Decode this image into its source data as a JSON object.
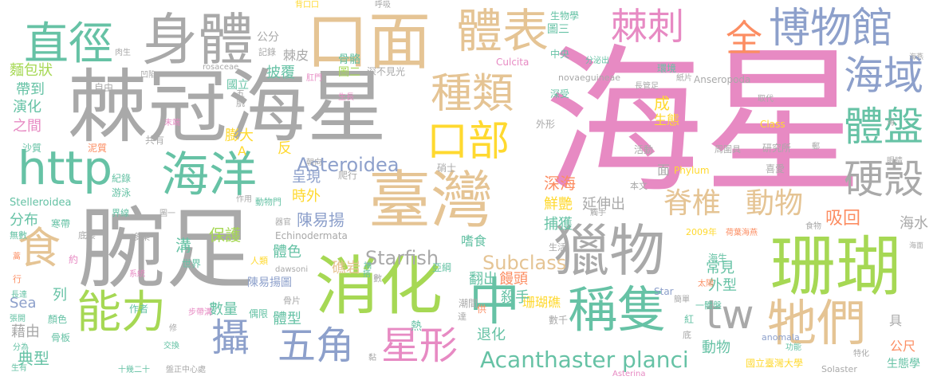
{
  "palette": {
    "pink": "#e78ac3",
    "gray": "#a9a9a9",
    "green": "#8fd36b",
    "teal": "#66c2a5",
    "orange": "#fc8d62",
    "yellow": "#ffd92f",
    "tan": "#e5c494",
    "blue": "#8da0cb",
    "lime": "#a6d854"
  },
  "words": [
    {
      "text": "海星",
      "color": "pink"
    },
    {
      "text": "棘冠海星",
      "color": "gray"
    },
    {
      "text": "腕足",
      "color": "gray"
    },
    {
      "text": "珊瑚",
      "color": "lime"
    },
    {
      "text": "臺灣",
      "color": "tan"
    },
    {
      "text": "消化",
      "color": "lime"
    },
    {
      "text": "獵物",
      "color": "gray"
    },
    {
      "text": "口面",
      "color": "tan"
    },
    {
      "text": "身體",
      "color": "gray"
    },
    {
      "text": "直徑",
      "color": "teal"
    },
    {
      "text": "海洋",
      "color": "teal"
    },
    {
      "text": "http",
      "color": "teal"
    },
    {
      "text": "能力",
      "color": "lime"
    },
    {
      "text": "中",
      "color": "teal"
    },
    {
      "text": "稱隻",
      "color": "teal"
    },
    {
      "text": "牠們",
      "color": "tan"
    },
    {
      "text": "博物館",
      "color": "blue"
    },
    {
      "text": "棘刺",
      "color": "pink"
    },
    {
      "text": "體表",
      "color": "tan"
    },
    {
      "text": "全",
      "color": "orange"
    },
    {
      "text": "種類",
      "color": "tan"
    },
    {
      "text": "口部",
      "color": "yellow"
    },
    {
      "text": "海域",
      "color": "blue"
    },
    {
      "text": "體盤",
      "color": "teal"
    },
    {
      "text": "硬殼",
      "color": "gray"
    },
    {
      "text": "五角",
      "color": "blue"
    },
    {
      "text": "星形",
      "color": "pink"
    },
    {
      "text": "攝",
      "color": "blue"
    },
    {
      "text": "tw",
      "color": "gray"
    },
    {
      "text": "食",
      "color": "tan"
    },
    {
      "text": "脊椎",
      "color": "tan"
    },
    {
      "text": "動物",
      "color": "tan"
    },
    {
      "text": "Acanthaster planci",
      "color": "teal"
    },
    {
      "text": "Asteroidea",
      "color": "blue"
    },
    {
      "text": "Starfish",
      "color": "gray"
    },
    {
      "text": "Subclass",
      "color": "tan"
    },
    {
      "text": "陳易揚",
      "color": "blue"
    },
    {
      "text": "保護",
      "color": "lime"
    },
    {
      "text": "延伸出",
      "color": "gray"
    },
    {
      "text": "吸回",
      "color": "orange"
    },
    {
      "text": "海水",
      "color": "gray"
    },
    {
      "text": "深海",
      "color": "orange"
    },
    {
      "text": "捕獲",
      "color": "teal"
    },
    {
      "text": "鮮艷",
      "color": "yellow"
    },
    {
      "text": "分布",
      "color": "teal"
    },
    {
      "text": "帶到",
      "color": "teal"
    },
    {
      "text": "演化",
      "color": "teal"
    },
    {
      "text": "之間",
      "color": "pink"
    },
    {
      "text": "麵包狀",
      "color": "lime"
    },
    {
      "text": "時外",
      "color": "yellow"
    },
    {
      "text": "呈現",
      "color": "blue"
    },
    {
      "text": "膨大",
      "color": "yellow"
    },
    {
      "text": "披覆",
      "color": "teal"
    },
    {
      "text": "棘皮",
      "color": "gray"
    },
    {
      "text": "公分",
      "color": "gray"
    },
    {
      "text": "骨骼",
      "color": "teal"
    },
    {
      "text": "圖二",
      "color": "lime"
    },
    {
      "text": "圖三",
      "color": "teal"
    },
    {
      "text": "深不見光",
      "color": "gray"
    },
    {
      "text": "國立",
      "color": "teal"
    },
    {
      "text": "成",
      "color": "yellow"
    },
    {
      "text": "生態",
      "color": "yellow"
    },
    {
      "text": "硝士",
      "color": "gray"
    },
    {
      "text": "礁岩",
      "color": "tan"
    },
    {
      "text": "翻出",
      "color": "teal"
    },
    {
      "text": "饅頭",
      "color": "orange"
    },
    {
      "text": "珊瑚礁",
      "color": "yellow"
    },
    {
      "text": "外型",
      "color": "teal"
    },
    {
      "text": "常見",
      "color": "teal"
    },
    {
      "text": "殺手",
      "color": "teal"
    },
    {
      "text": "體色",
      "color": "teal"
    },
    {
      "text": "陳易揚圖",
      "color": "blue"
    },
    {
      "text": "數量",
      "color": "teal"
    },
    {
      "text": "體型",
      "color": "teal"
    },
    {
      "text": "退化",
      "color": "teal"
    },
    {
      "text": "動物",
      "color": "teal"
    },
    {
      "text": "溝",
      "color": "teal"
    },
    {
      "text": "典型",
      "color": "teal"
    },
    {
      "text": "藉由",
      "color": "gray"
    },
    {
      "text": "列",
      "color": "teal"
    },
    {
      "text": "Sea",
      "color": "blue"
    },
    {
      "text": "公尺",
      "color": "orange"
    },
    {
      "text": "國立臺灣大學",
      "color": "yellow"
    },
    {
      "text": "生態學",
      "color": "teal"
    },
    {
      "text": "具",
      "color": "gray"
    },
    {
      "text": "研究所",
      "color": "gray"
    },
    {
      "text": "喜愛",
      "color": "gray"
    },
    {
      "text": "Class",
      "color": "yellow"
    },
    {
      "text": "Phylum",
      "color": "yellow"
    },
    {
      "text": "Echinodermata",
      "color": "gray"
    },
    {
      "text": "Stelleroidea",
      "color": "teal"
    },
    {
      "text": "Culcita",
      "color": "pink"
    },
    {
      "text": "Anseropoda",
      "color": "gray"
    },
    {
      "text": "novaeguineae",
      "color": "gray"
    },
    {
      "text": "rosaceae",
      "color": "gray"
    },
    {
      "text": "dawsoni",
      "color": "gray"
    },
    {
      "text": "Asterina",
      "color": "pink"
    },
    {
      "text": "Solaster",
      "color": "gray"
    },
    {
      "text": "Star",
      "color": "blue"
    },
    {
      "text": "anomala",
      "color": "blue"
    },
    {
      "text": "A",
      "color": "yellow"
    },
    {
      "text": "反",
      "color": "yellow"
    },
    {
      "text": "面",
      "color": "gray"
    },
    {
      "text": "2009年",
      "color": "yellow"
    },
    {
      "text": "生物學",
      "color": "teal"
    },
    {
      "text": "環境",
      "color": "teal"
    },
    {
      "text": "周圍具",
      "color": "gray"
    },
    {
      "text": "活動",
      "color": "gray"
    },
    {
      "text": "嗜食",
      "color": "teal"
    },
    {
      "text": "爬行",
      "color": "gray"
    },
    {
      "text": "深受",
      "color": "teal"
    },
    {
      "text": "外形",
      "color": "gray"
    },
    {
      "text": "本文",
      "color": "gray"
    },
    {
      "text": "紀錄",
      "color": "teal"
    },
    {
      "text": "游泳",
      "color": "teal"
    },
    {
      "text": "界線",
      "color": "teal"
    },
    {
      "text": "無數",
      "color": "teal"
    },
    {
      "text": "底棲",
      "color": "gray"
    },
    {
      "text": "多樂",
      "color": "gray"
    },
    {
      "text": "世界",
      "color": "teal"
    },
    {
      "text": "人類",
      "color": "yellow"
    },
    {
      "text": "海生",
      "color": "teal"
    },
    {
      "text": "作者",
      "color": "teal"
    },
    {
      "text": "顏色",
      "color": "teal"
    },
    {
      "text": "骨板",
      "color": "teal"
    },
    {
      "text": "偶限",
      "color": "teal"
    },
    {
      "text": "潮間",
      "color": "gray"
    },
    {
      "text": "數千",
      "color": "gray"
    },
    {
      "text": "亞綱",
      "color": "teal"
    },
    {
      "text": "生活",
      "color": "gray"
    },
    {
      "text": "骨片",
      "color": "gray"
    },
    {
      "text": "盤正中心處",
      "color": "gray"
    },
    {
      "text": "十幾二十",
      "color": "teal"
    },
    {
      "text": "交換",
      "color": "teal"
    },
    {
      "text": "一體盤",
      "color": "teal"
    },
    {
      "text": "紅",
      "color": "teal"
    },
    {
      "text": "熱",
      "color": "teal"
    },
    {
      "text": "生有",
      "color": "teal"
    },
    {
      "text": "分為",
      "color": "teal"
    },
    {
      "text": "張開",
      "color": "teal"
    },
    {
      "text": "長達",
      "color": "teal"
    },
    {
      "text": "沙質",
      "color": "teal"
    },
    {
      "text": "泥質",
      "color": "orange"
    },
    {
      "text": "共有",
      "color": "gray"
    },
    {
      "text": "寒帶",
      "color": "teal"
    },
    {
      "text": "自由",
      "color": "gray"
    },
    {
      "text": "記錄",
      "color": "gray"
    },
    {
      "text": "中央",
      "color": "teal"
    },
    {
      "text": "取代",
      "color": "gray"
    },
    {
      "text": "眼睛",
      "color": "gray"
    },
    {
      "text": "特化",
      "color": "gray"
    },
    {
      "text": "功能",
      "color": "teal"
    },
    {
      "text": "海面",
      "color": "gray"
    },
    {
      "text": "肉生",
      "color": "gray"
    },
    {
      "text": "凹陷",
      "color": "gray"
    },
    {
      "text": "呼吸",
      "color": "gray"
    },
    {
      "text": "背口口",
      "color": "yellow"
    },
    {
      "text": "分泌出",
      "color": "teal"
    },
    {
      "text": "長管足",
      "color": "gray"
    },
    {
      "text": "紙片",
      "color": "gray"
    },
    {
      "text": "肛門",
      "color": "pink"
    },
    {
      "text": "末端",
      "color": "pink"
    },
    {
      "text": "生長",
      "color": "pink"
    },
    {
      "text": "朝向",
      "color": "gray"
    },
    {
      "text": "動物門",
      "color": "teal"
    },
    {
      "text": "器官",
      "color": "gray"
    },
    {
      "text": "圖一",
      "color": "gray"
    },
    {
      "text": "作用",
      "color": "gray"
    },
    {
      "text": "系統",
      "color": "pink"
    },
    {
      "text": "步帶溝",
      "color": "pink"
    },
    {
      "text": "太陽",
      "color": "orange"
    },
    {
      "text": "荷葉海燕",
      "color": "orange"
    },
    {
      "text": "簡單",
      "color": "gray"
    },
    {
      "text": "食物",
      "color": "gray"
    },
    {
      "text": "觸手",
      "color": "gray"
    },
    {
      "text": "海燕",
      "color": "gray"
    },
    {
      "text": "供",
      "color": "orange"
    },
    {
      "text": "達",
      "color": "gray"
    },
    {
      "text": "數",
      "color": "gray"
    },
    {
      "text": "肌",
      "color": "gray"
    },
    {
      "text": "五",
      "color": "gray"
    },
    {
      "text": "行",
      "color": "orange"
    },
    {
      "text": "約",
      "color": "pink"
    },
    {
      "text": "底",
      "color": "gray"
    },
    {
      "text": "海",
      "color": "gray"
    },
    {
      "text": "修",
      "color": "gray"
    },
    {
      "text": "郵",
      "color": "gray"
    },
    {
      "text": "黏",
      "color": "gray"
    },
    {
      "text": "捕",
      "color": "teal"
    },
    {
      "text": "搭",
      "color": "teal"
    },
    {
      "text": "蒿",
      "color": "orange"
    }
  ]
}
